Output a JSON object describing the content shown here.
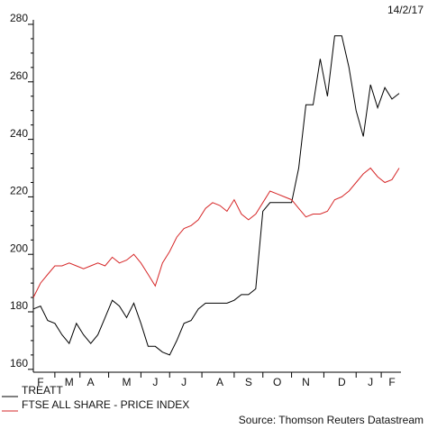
{
  "chart_data": {
    "type": "line",
    "date": "14/2/17",
    "source": "Source: Thomson Reuters Datastream",
    "categories": [
      null,
      "F",
      null,
      null,
      null,
      "M",
      null,
      null,
      "A",
      null,
      null,
      null,
      null,
      "M",
      null,
      null,
      null,
      "J",
      null,
      null,
      null,
      "J",
      null,
      null,
      null,
      null,
      "A",
      null,
      null,
      null,
      "S",
      null,
      null,
      null,
      "O",
      null,
      null,
      null,
      "N",
      null,
      null,
      null,
      null,
      "D",
      null,
      null,
      null,
      "J",
      null,
      null,
      "F",
      null
    ],
    "series": [
      {
        "name": "TREATT",
        "color": "#000000",
        "values": [
          181,
          182,
          177,
          176,
          172,
          169,
          176,
          172,
          169,
          172,
          178,
          184,
          182,
          178,
          183,
          176,
          168,
          168,
          166,
          165,
          170,
          176,
          177,
          181,
          183,
          183,
          183,
          183,
          184,
          186,
          186,
          188,
          215,
          218,
          218,
          218,
          218,
          230,
          252,
          252,
          268,
          255,
          276,
          276,
          265,
          250,
          241,
          259,
          251,
          258,
          254,
          256
        ]
      },
      {
        "name": "FTSE ALL SHARE - PRICE INDEX",
        "color": "#d62728",
        "values": [
          185,
          190,
          193,
          196,
          196,
          197,
          196,
          195,
          196,
          197,
          196,
          199,
          197,
          198,
          200,
          197,
          193,
          189,
          197,
          201,
          206,
          209,
          210,
          212,
          216,
          218,
          217,
          215,
          219,
          214,
          212,
          214,
          218,
          222,
          221,
          220,
          219,
          216,
          213,
          214,
          214,
          215,
          219,
          220,
          222,
          225,
          228,
          230,
          227,
          225,
          226,
          230
        ]
      }
    ],
    "ylim": [
      159,
      280
    ],
    "yticks": [
      160,
      180,
      200,
      220,
      240,
      260,
      280
    ]
  }
}
